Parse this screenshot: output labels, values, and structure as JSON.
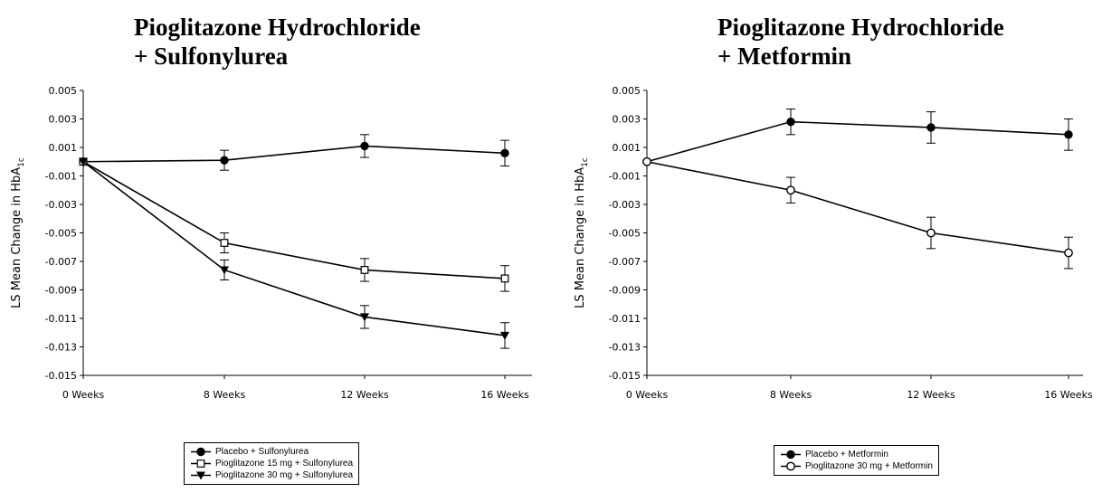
{
  "chart_data": [
    {
      "type": "line",
      "title_lines": [
        "Pioglitazone Hydrochloride",
        "+ Sulfonylurea"
      ],
      "ylabel": "LS Mean Change in HbA",
      "ylabel_sub": "1c",
      "ylim": [
        -0.015,
        0.005
      ],
      "yticks": [
        "0.005",
        "0.003",
        "0.001",
        "-0.001",
        "-0.003",
        "-0.005",
        "-0.007",
        "-0.009",
        "-0.011",
        "-0.013",
        "-0.015"
      ],
      "categories": [
        "0 Weeks",
        "8 Weeks",
        "12 Weeks",
        "16 Weeks"
      ],
      "x": [
        0,
        8,
        12,
        16
      ],
      "series": [
        {
          "name": "Placebo + Sulfonylurea",
          "marker": "filled-circle",
          "values": [
            0.0,
            0.0001,
            0.0011,
            0.0006
          ],
          "errors": [
            0,
            0.0007,
            0.0008,
            0.0009
          ]
        },
        {
          "name": "Pioglitazone 15 mg + Sulfonylurea",
          "marker": "open-square",
          "values": [
            0.0,
            -0.0057,
            -0.0076,
            -0.0082
          ],
          "errors": [
            0,
            0.0007,
            0.0008,
            0.0009
          ]
        },
        {
          "name": "Pioglitazone 30 mg + Sulfonylurea",
          "marker": "filled-triangle-down",
          "values": [
            0.0,
            -0.0076,
            -0.0109,
            -0.0122
          ],
          "errors": [
            0,
            0.0007,
            0.0008,
            0.0009
          ]
        }
      ],
      "legend": "bottom-center",
      "grid": false
    },
    {
      "type": "line",
      "title_lines": [
        "Pioglitazone Hydrochloride",
        "+ Metformin"
      ],
      "ylabel": "LS Mean Change in HbA",
      "ylabel_sub": "1c",
      "ylim": [
        -0.015,
        0.005
      ],
      "yticks": [
        "0.005",
        "0.003",
        "0.001",
        "-0.001",
        "-0.003",
        "-0.005",
        "-0.007",
        "-0.009",
        "-0.011",
        "-0.013",
        "-0.015"
      ],
      "categories": [
        "0 Weeks",
        "8 Weeks",
        "12 Weeks",
        "16 Weeks"
      ],
      "x": [
        0,
        8,
        12,
        16
      ],
      "series": [
        {
          "name": "Placebo + Metformin",
          "marker": "filled-circle",
          "values": [
            0.0,
            0.0028,
            0.0024,
            0.0019
          ],
          "errors": [
            0,
            0.0009,
            0.0011,
            0.0011
          ]
        },
        {
          "name": "Pioglitazone 30 mg + Metformin",
          "marker": "open-circle",
          "values": [
            0.0,
            -0.002,
            -0.005,
            -0.0064
          ],
          "errors": [
            0,
            0.0009,
            0.0011,
            0.0011
          ]
        }
      ],
      "legend": "bottom-center",
      "grid": false
    }
  ]
}
